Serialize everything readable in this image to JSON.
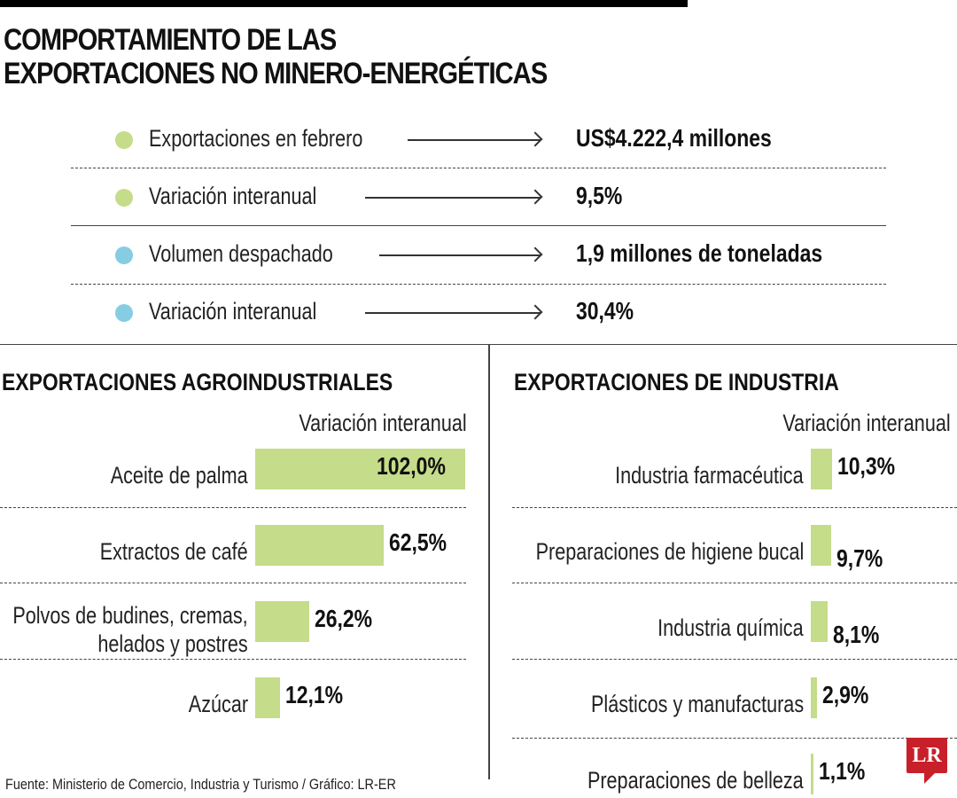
{
  "title_line1": "COMPORTAMIENTO DE LAS",
  "title_line2": "EXPORTACIONES NO MINERO-ENERGÉTICAS",
  "colors": {
    "green": "#c5dc8a",
    "blue": "#86cde3",
    "logo": "#c8202a"
  },
  "kpis": [
    {
      "label": "Exportaciones en febrero",
      "value": "US$4.222,4 millones",
      "color": "green"
    },
    {
      "label": "Variación interanual",
      "value": "9,5%",
      "color": "green"
    },
    {
      "label": "Volumen despachado",
      "value": "1,9 millones de toneladas",
      "color": "blue"
    },
    {
      "label": "Variación interanual",
      "value": "30,4%",
      "color": "blue"
    }
  ],
  "chart_data": [
    {
      "type": "bar",
      "orientation": "horizontal",
      "title": "EXPORTACIONES AGROINDUSTRIALES",
      "subtitle": "Variación interanual",
      "categories": [
        "Aceite de palma",
        "Extractos de café",
        "Polvos de budines, cremas, helados y postres",
        "Azúcar"
      ],
      "values": [
        102.0,
        62.5,
        26.2,
        12.1
      ],
      "labels": [
        "102,0%",
        "62,5%",
        "26,2%",
        "12,1%"
      ]
    },
    {
      "type": "bar",
      "orientation": "horizontal",
      "title": "EXPORTACIONES DE INDUSTRIA",
      "subtitle": "Variación interanual",
      "categories": [
        "Industria farmacéutica",
        "Preparaciones de higiene bucal",
        "Industria química",
        "Plásticos y manufacturas",
        "Preparaciones de belleza"
      ],
      "values": [
        10.3,
        9.7,
        8.1,
        2.9,
        1.1
      ],
      "labels": [
        "10,3%",
        "9,7%",
        "8,1%",
        "2,9%",
        "1,1%"
      ]
    }
  ],
  "source": "Fuente: Ministerio de Comercio, Industria y Turismo / Gráfico: LR-ER",
  "logo_text": "LR"
}
